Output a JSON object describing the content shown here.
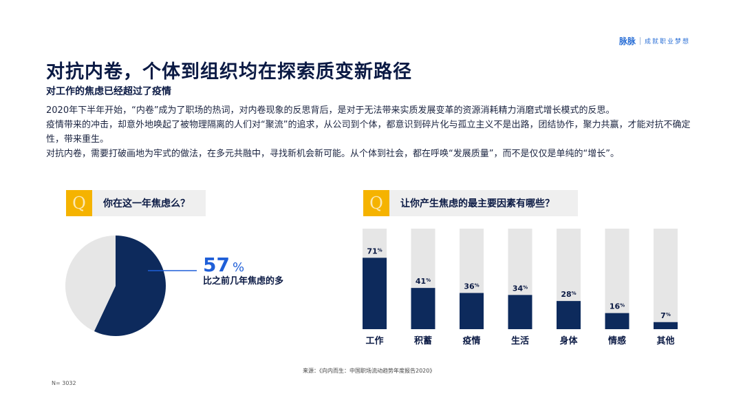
{
  "brand": {
    "logo": "脉脉",
    "slogan": "成就职业梦想"
  },
  "title": "对抗内卷，个体到组织均在探索质变新路径",
  "subtitle": "对工作的焦虑已经超过了疫情",
  "paragraphs": [
    "2020年下半年开始，“内卷”成为了职场的热词，对内卷现象的反思背后，是对于无法带来实质发展变革的资源消耗精力消磨式增长模式的反思。",
    "疫情带来的冲击，却意外地唤起了被物理隔离的人们对“聚流”的追求，从公司到个体，都意识到碎片化与孤立主义不是出路，团结协作，聚力共赢，才能对抗不确定性，带来重生。",
    "对抗内卷，需要打破画地为牢式的做法，在多元共融中，寻找新机会新可能。从个体到社会，都在呼唤“发展质量”，而不是仅仅是单纯的“增长”。"
  ],
  "q_icon": "Q",
  "question1": "你在这一年焦虑么？",
  "question2": "让你产生焦虑的最主要因素有哪些？",
  "stat": {
    "value": "57",
    "unit": "%",
    "label": "比之前几年焦虑的多"
  },
  "source": "来源：《向内而生：中国职场流动趋势年度报告2020》",
  "sample": "N= 3032",
  "colors": {
    "navy": "#0d2a5c",
    "light": "#e6e6e6",
    "accent": "#1f5fd8",
    "icon": "#f5b300"
  },
  "chart_data": [
    {
      "type": "pie",
      "title": "你在这一年焦虑么？",
      "slices": [
        {
          "value": 57,
          "color": "#0d2a5c"
        },
        {
          "value": 43,
          "color": "#e6e6e6"
        }
      ]
    },
    {
      "type": "bar",
      "title": "让你产生焦虑的最主要因素有哪些？",
      "categories": [
        "工作",
        "积蓄",
        "疫情",
        "生活",
        "身体",
        "情感",
        "其他"
      ],
      "values": [
        71,
        41,
        36,
        34,
        28,
        16,
        7
      ],
      "unit": "%",
      "ylim": [
        0,
        100
      ]
    }
  ]
}
